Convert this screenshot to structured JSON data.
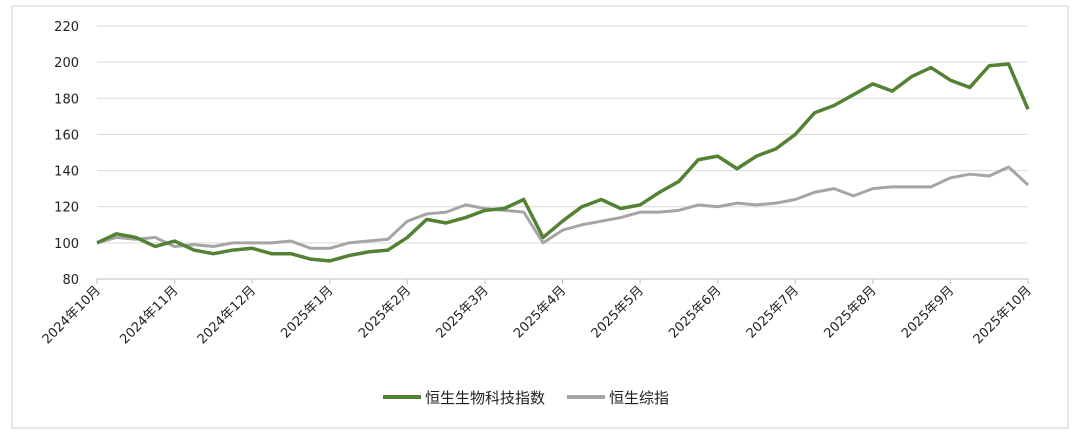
{
  "chart_data": {
    "type": "line",
    "categories": [
      "2024年10月",
      null,
      null,
      null,
      "2024年11月",
      null,
      null,
      null,
      "2024年12月",
      null,
      null,
      null,
      "2025年1月",
      null,
      null,
      null,
      "2025年2月",
      null,
      null,
      null,
      "2025年3月",
      null,
      null,
      null,
      "2025年4月",
      null,
      null,
      null,
      "2025年5月",
      null,
      null,
      null,
      "2025年6月",
      null,
      null,
      null,
      "2025年7月",
      null,
      null,
      null,
      "2025年8月",
      null,
      null,
      null,
      "2025年9月",
      null,
      null,
      null,
      "2025年10月"
    ],
    "series": [
      {
        "name": "恒生生物科技指数",
        "color": "#548235",
        "values": [
          100,
          105,
          103,
          98,
          101,
          96,
          94,
          96,
          97,
          94,
          94,
          91,
          90,
          93,
          95,
          96,
          103,
          113,
          111,
          114,
          118,
          119,
          124,
          103,
          112,
          120,
          124,
          119,
          121,
          128,
          134,
          146,
          148,
          141,
          148,
          152,
          160,
          172,
          176,
          182,
          188,
          184,
          192,
          197,
          190,
          186,
          198,
          199,
          174
        ]
      },
      {
        "name": "恒生综指",
        "color": "#a5a5a5",
        "values": [
          100,
          103,
          102,
          103,
          98,
          99,
          98,
          100,
          100,
          100,
          101,
          97,
          97,
          100,
          101,
          102,
          112,
          116,
          117,
          121,
          119,
          118,
          117,
          100,
          107,
          110,
          112,
          114,
          117,
          117,
          118,
          121,
          120,
          122,
          121,
          122,
          124,
          128,
          130,
          126,
          130,
          131,
          131,
          131,
          136,
          138,
          137,
          142,
          132
        ]
      }
    ],
    "ylim": [
      80,
      220
    ],
    "yticks": [
      80,
      100,
      120,
      140,
      160,
      180,
      200,
      220
    ],
    "grid": true,
    "legend": "bottom"
  }
}
